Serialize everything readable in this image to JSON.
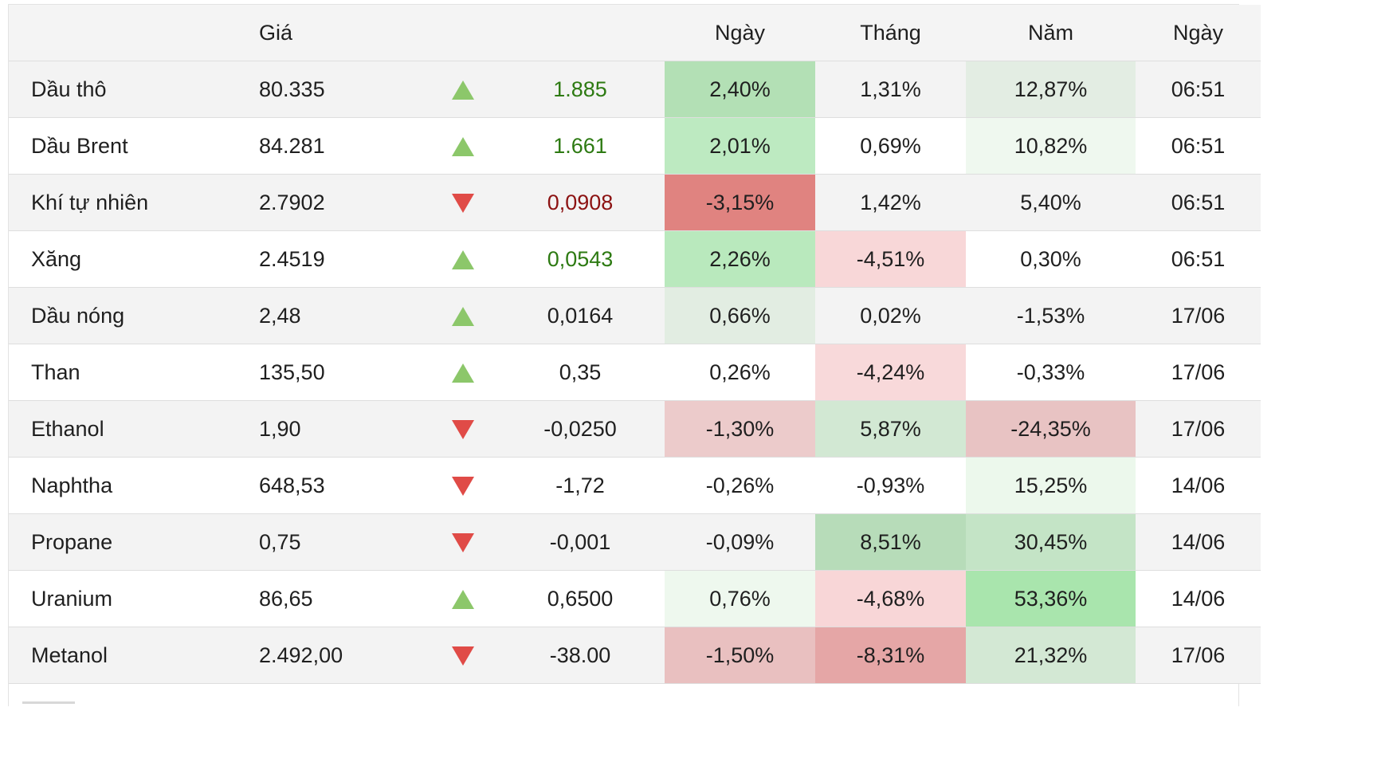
{
  "header": {
    "name": "",
    "price": "Giá",
    "dir": "",
    "change": "",
    "day": "Ngày",
    "month": "Tháng",
    "year": "Năm",
    "time": "Ngày"
  },
  "colors": {
    "up_arrow": "#8cc76a",
    "down_arrow": "#e04b47",
    "pos_text": "#2d7a12",
    "neg_text": "#8c1212"
  },
  "rows": [
    {
      "name": "Dầu thô",
      "price": "80.335",
      "dir": "up",
      "change": "1.885",
      "change_tone": "pos",
      "day": "2,40%",
      "day_bg": "#b3e0b5",
      "month": "1,31%",
      "month_bg": "",
      "year": "12,87%",
      "year_bg": "#e3ede3",
      "time": "06:51"
    },
    {
      "name": "Dầu Brent",
      "price": "84.281",
      "dir": "up",
      "change": "1.661",
      "change_tone": "pos",
      "day": "2,01%",
      "day_bg": "#bdeac1",
      "month": "0,69%",
      "month_bg": "",
      "year": "10,82%",
      "year_bg": "#eff8ef",
      "time": "06:51"
    },
    {
      "name": "Khí tự nhiên",
      "price": "2.7902",
      "dir": "down",
      "change": "0,0908",
      "change_tone": "neg",
      "day": "-3,15%",
      "day_bg": "#e08380",
      "month": "1,42%",
      "month_bg": "",
      "year": "5,40%",
      "year_bg": "",
      "time": "06:51"
    },
    {
      "name": "Xăng",
      "price": "2.4519",
      "dir": "up",
      "change": "0,0543",
      "change_tone": "pos",
      "day": "2,26%",
      "day_bg": "#b9e9bd",
      "month": "-4,51%",
      "month_bg": "#f8d7d8",
      "year": "0,30%",
      "year_bg": "",
      "time": "06:51"
    },
    {
      "name": "Dầu nóng",
      "price": "2,48",
      "dir": "up",
      "change": "0,0164",
      "change_tone": "",
      "day": "0,66%",
      "day_bg": "#e2ede2",
      "month": "0,02%",
      "month_bg": "",
      "year": "-1,53%",
      "year_bg": "",
      "time": "17/06"
    },
    {
      "name": "Than",
      "price": "135,50",
      "dir": "up",
      "change": "0,35",
      "change_tone": "",
      "day": "0,26%",
      "day_bg": "",
      "month": "-4,24%",
      "month_bg": "#f8d9da",
      "year": "-0,33%",
      "year_bg": "",
      "time": "17/06"
    },
    {
      "name": "Ethanol",
      "price": "1,90",
      "dir": "down",
      "change": "-0,0250",
      "change_tone": "",
      "day": "-1,30%",
      "day_bg": "#eccbcb",
      "month": "5,87%",
      "month_bg": "#d2e8d3",
      "year": "-24,35%",
      "year_bg": "#e8c3c3",
      "time": "17/06"
    },
    {
      "name": "Naphtha",
      "price": "648,53",
      "dir": "down",
      "change": "-1,72",
      "change_tone": "",
      "day": "-0,26%",
      "day_bg": "",
      "month": "-0,93%",
      "month_bg": "",
      "year": "15,25%",
      "year_bg": "#ecf8ec",
      "time": "14/06"
    },
    {
      "name": "Propane",
      "price": "0,75",
      "dir": "down",
      "change": "-0,001",
      "change_tone": "",
      "day": "-0,09%",
      "day_bg": "",
      "month": "8,51%",
      "month_bg": "#b7dcb9",
      "year": "30,45%",
      "year_bg": "#c4e4c6",
      "time": "14/06"
    },
    {
      "name": "Uranium",
      "price": "86,65",
      "dir": "up",
      "change": "0,6500",
      "change_tone": "",
      "day": "0,76%",
      "day_bg": "#eef8ee",
      "month": "-4,68%",
      "month_bg": "#f8d6d7",
      "year": "53,36%",
      "year_bg": "#a9e5ad",
      "time": "14/06"
    },
    {
      "name": "Metanol",
      "price": "2.492,00",
      "dir": "down",
      "change": "-38.00",
      "change_tone": "",
      "day": "-1,50%",
      "day_bg": "#e9c0c0",
      "month": "-8,31%",
      "month_bg": "#e5a6a6",
      "year": "21,32%",
      "year_bg": "#d3e8d4",
      "time": "17/06"
    }
  ]
}
